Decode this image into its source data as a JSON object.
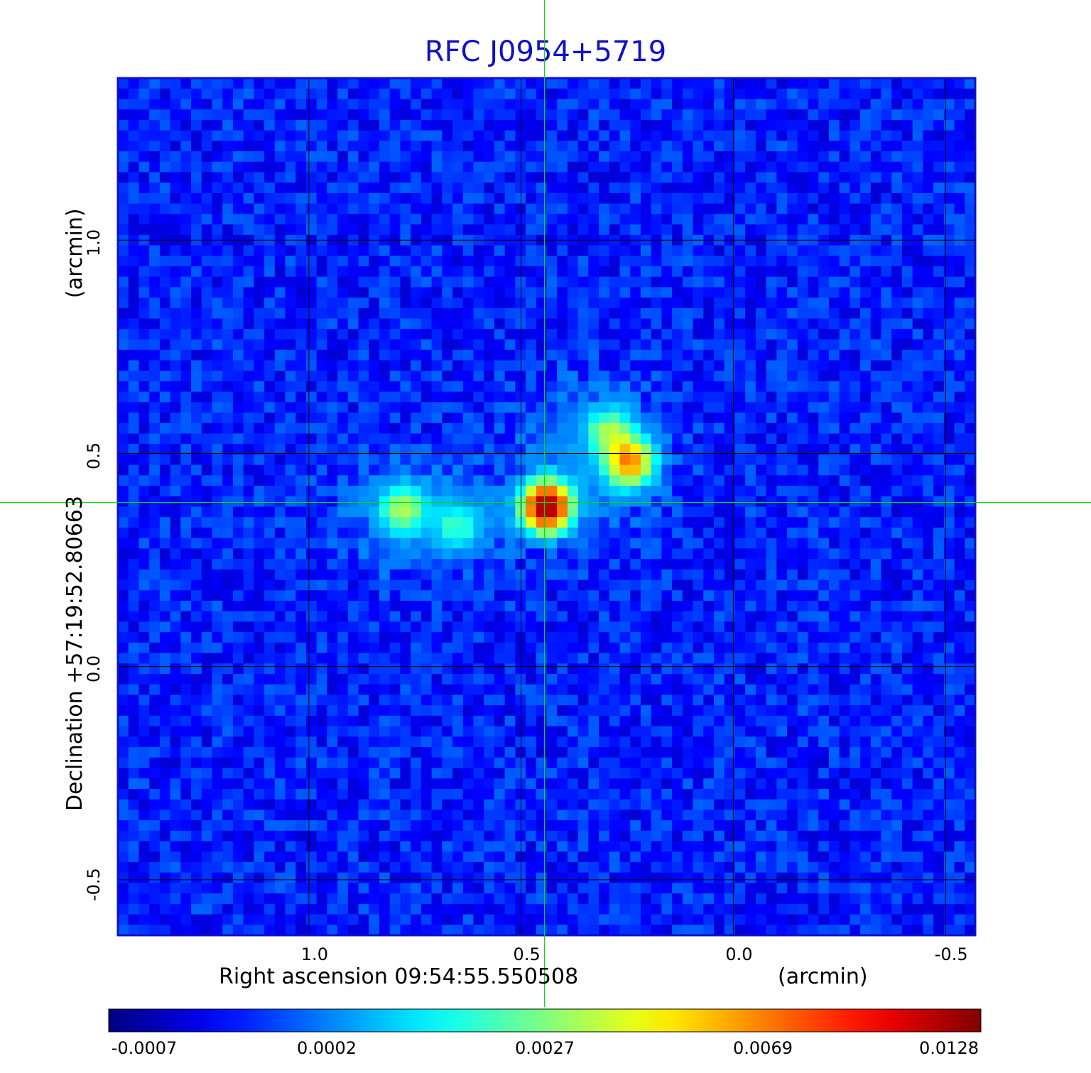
{
  "chart_data": {
    "type": "heatmap",
    "title": "RFC J0954+5719",
    "x_axis": {
      "label": "Right ascension  09:54:55.550508",
      "unit_label": "(arcmin)",
      "ticks": [
        1.0,
        0.5,
        0.0,
        -0.5
      ],
      "tick_labels": [
        "1.0",
        "0.5",
        "0.0",
        "-0.5"
      ],
      "range": [
        1.45,
        -0.57
      ]
    },
    "y_axis": {
      "label": "Declination  +57:19:52.80663",
      "unit_label": "(arcmin)",
      "ticks": [
        1.0,
        0.5,
        0.0,
        -0.5
      ],
      "tick_labels": [
        "1.0",
        "0.5",
        "0.0",
        "-0.5"
      ],
      "range": [
        -0.63,
        1.38
      ]
    },
    "grid": true,
    "crosshair": {
      "ra": 0.445,
      "dec": 0.385
    },
    "colorbar": {
      "placement": "bottom",
      "tick_labels": [
        "-0.0007",
        "0.0002",
        "0.0027",
        "0.0069",
        "0.0128"
      ],
      "ticks": [
        -0.0007,
        0.0002,
        0.0027,
        0.0069,
        0.0128
      ],
      "colors": [
        "#00008f",
        "#0000ff",
        "#00ffff",
        "#ffff00",
        "#ff0000",
        "#800000"
      ]
    },
    "sources": [
      {
        "ra": 0.44,
        "dec": 0.375,
        "peak": 0.0128
      },
      {
        "ra": 0.245,
        "dec": 0.48,
        "peak": 0.0069
      },
      {
        "ra": 0.29,
        "dec": 0.55,
        "peak": 0.003
      },
      {
        "ra": 0.78,
        "dec": 0.37,
        "peak": 0.003
      },
      {
        "ra": 0.65,
        "dec": 0.33,
        "peak": 0.0018
      }
    ]
  }
}
